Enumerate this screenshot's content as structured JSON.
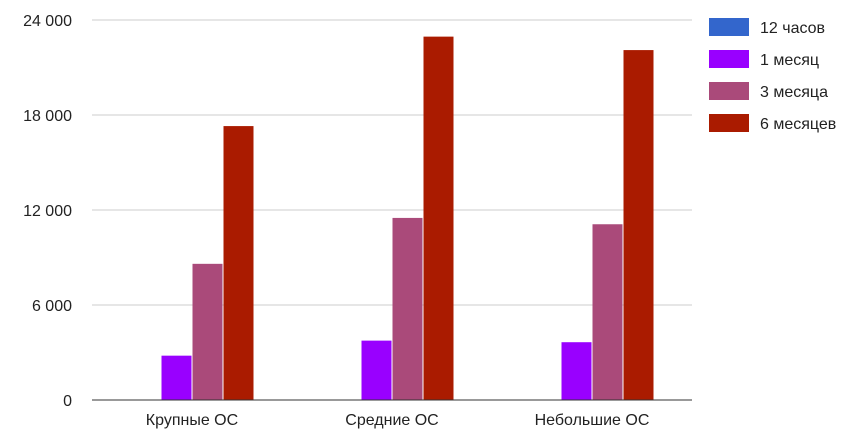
{
  "chart_data": {
    "type": "bar",
    "categories": [
      "Крупные ОС",
      "Средние ОС",
      "Небольшие ОС"
    ],
    "series": [
      {
        "name": "12 часов",
        "color": "#3366cc",
        "values": [
          0,
          0,
          0
        ]
      },
      {
        "name": "1 месяц",
        "color": "#9900ff",
        "values": [
          2800,
          3750,
          3650
        ]
      },
      {
        "name": "3 месяца",
        "color": "#aa4a7a",
        "values": [
          8600,
          11500,
          11100
        ]
      },
      {
        "name": "6 месяцев",
        "color": "#aa1b00",
        "values": [
          17300,
          22950,
          22100
        ]
      }
    ],
    "yticks": [
      "0",
      "6 000",
      "12 000",
      "18 000",
      "24 000"
    ],
    "ytick_values": [
      0,
      6000,
      12000,
      18000,
      24000
    ],
    "ylim": [
      0,
      24000
    ],
    "grid": true,
    "legend": "right"
  }
}
